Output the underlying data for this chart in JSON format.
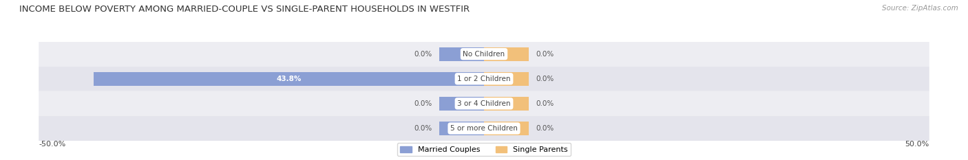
{
  "title": "INCOME BELOW POVERTY AMONG MARRIED-COUPLE VS SINGLE-PARENT HOUSEHOLDS IN WESTFIR",
  "source": "Source: ZipAtlas.com",
  "categories": [
    "No Children",
    "1 or 2 Children",
    "3 or 4 Children",
    "5 or more Children"
  ],
  "married_values": [
    0.0,
    43.8,
    0.0,
    0.0
  ],
  "single_values": [
    0.0,
    0.0,
    0.0,
    0.0
  ],
  "max_val": 50.0,
  "married_color": "#8B9FD4",
  "single_color": "#F2C07A",
  "row_colors": [
    "#EDEDF2",
    "#E4E4EC"
  ],
  "title_fontsize": 9.5,
  "label_fontsize": 7.5,
  "legend_married": "Married Couples",
  "legend_single": "Single Parents",
  "stub_size": 5.0,
  "bg_color": "#F5F5FA"
}
